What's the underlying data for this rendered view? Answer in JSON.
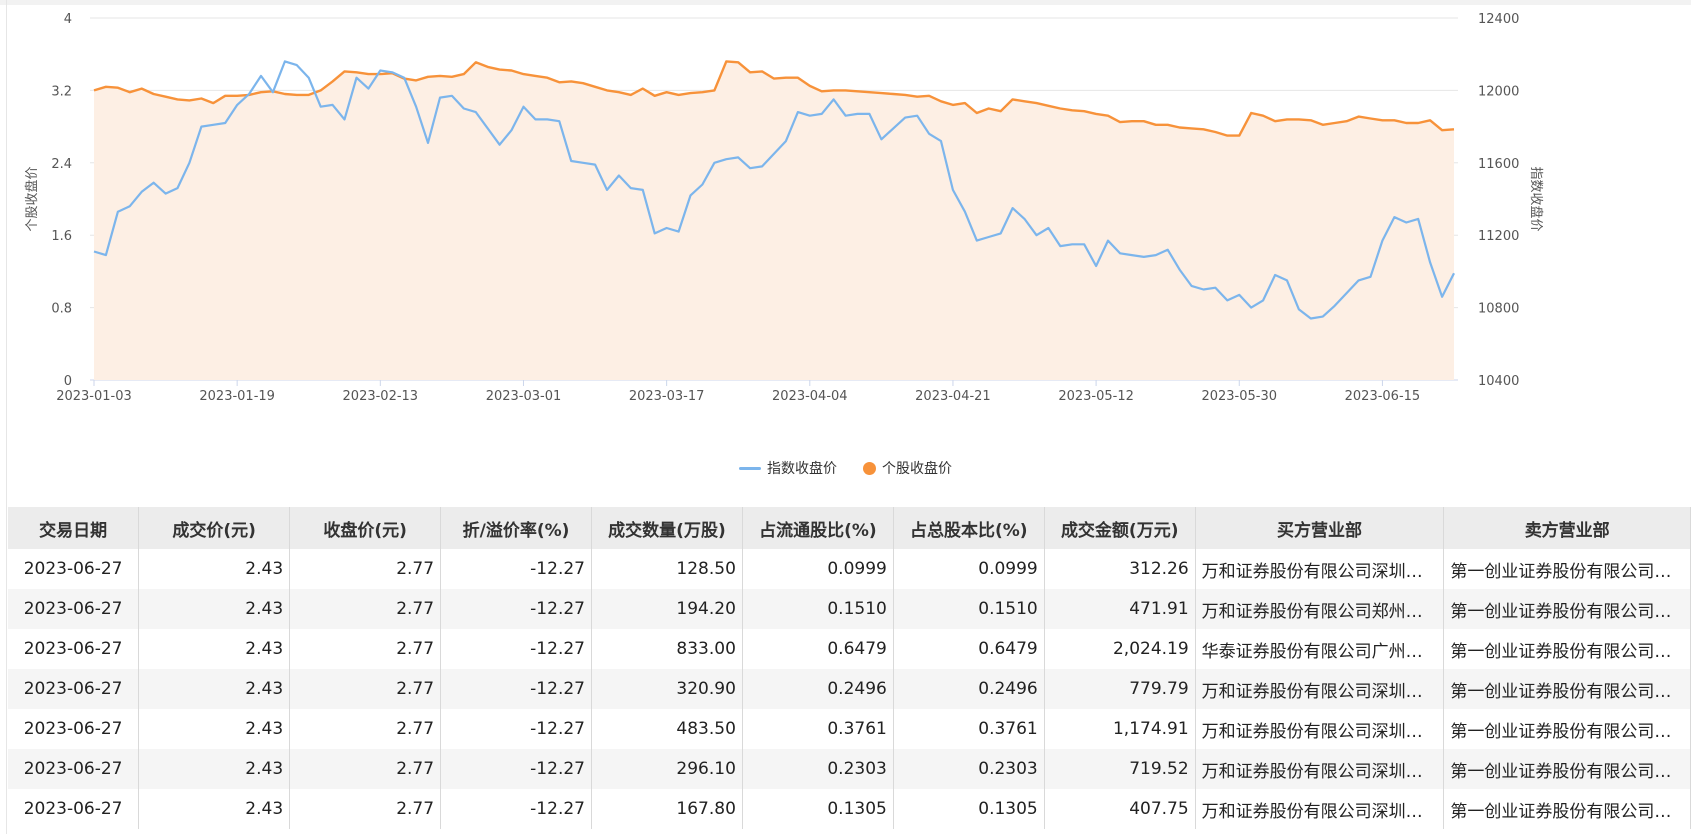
{
  "chart_data": {
    "type": "line",
    "x": [
      "2023-01-03",
      "2023-01-04",
      "2023-01-05",
      "2023-01-06",
      "2023-01-09",
      "2023-01-10",
      "2023-01-11",
      "2023-01-12",
      "2023-01-13",
      "2023-01-16",
      "2023-01-17",
      "2023-01-18",
      "2023-01-19",
      "2023-01-20",
      "2023-01-30",
      "2023-01-31",
      "2023-02-01",
      "2023-02-02",
      "2023-02-03",
      "2023-02-06",
      "2023-02-07",
      "2023-02-08",
      "2023-02-09",
      "2023-02-10",
      "2023-02-13",
      "2023-02-14",
      "2023-02-15",
      "2023-02-16",
      "2023-02-17",
      "2023-02-20",
      "2023-02-21",
      "2023-02-22",
      "2023-02-23",
      "2023-02-24",
      "2023-02-27",
      "2023-02-28",
      "2023-03-01",
      "2023-03-02",
      "2023-03-03",
      "2023-03-06",
      "2023-03-07",
      "2023-03-08",
      "2023-03-09",
      "2023-03-10",
      "2023-03-13",
      "2023-03-14",
      "2023-03-15",
      "2023-03-16",
      "2023-03-17",
      "2023-03-20",
      "2023-03-21",
      "2023-03-22",
      "2023-03-23",
      "2023-03-24",
      "2023-03-27",
      "2023-03-28",
      "2023-03-29",
      "2023-03-30",
      "2023-03-31",
      "2023-04-03",
      "2023-04-04",
      "2023-04-06",
      "2023-04-07",
      "2023-04-10",
      "2023-04-11",
      "2023-04-12",
      "2023-04-13",
      "2023-04-14",
      "2023-04-17",
      "2023-04-18",
      "2023-04-19",
      "2023-04-20",
      "2023-04-21",
      "2023-04-24",
      "2023-04-25",
      "2023-04-26",
      "2023-04-27",
      "2023-04-28",
      "2023-05-04",
      "2023-05-05",
      "2023-05-08",
      "2023-05-09",
      "2023-05-10",
      "2023-05-11",
      "2023-05-12",
      "2023-05-15",
      "2023-05-16",
      "2023-05-17",
      "2023-05-18",
      "2023-05-19",
      "2023-05-22",
      "2023-05-23",
      "2023-05-24",
      "2023-05-25",
      "2023-05-26",
      "2023-05-29",
      "2023-05-30",
      "2023-05-31",
      "2023-06-01",
      "2023-06-02",
      "2023-06-05",
      "2023-06-06",
      "2023-06-07",
      "2023-06-08",
      "2023-06-09",
      "2023-06-12",
      "2023-06-13",
      "2023-06-14",
      "2023-06-15",
      "2023-06-16",
      "2023-06-19",
      "2023-06-20",
      "2023-06-21",
      "2023-06-26",
      "2023-06-27"
    ],
    "x_tick_labels": [
      "2023-01-03",
      "2023-01-19",
      "2023-02-13",
      "2023-03-01",
      "2023-03-17",
      "2023-04-04",
      "2023-04-21",
      "2023-05-12",
      "2023-05-30",
      "2023-06-15"
    ],
    "x_tick_indices": [
      0,
      12,
      24,
      36,
      48,
      60,
      72,
      84,
      96,
      108
    ],
    "y_left": {
      "label": "个股收盘价",
      "min": 0,
      "max": 4,
      "ticks": [
        0,
        0.8,
        1.6,
        2.4,
        3.2,
        4
      ]
    },
    "y_right": {
      "label": "指数收盘价",
      "min": 10400,
      "max": 12400,
      "ticks": [
        10400,
        10800,
        11200,
        11600,
        12000,
        12400
      ]
    },
    "grid": true,
    "legend_position": "bottom-center",
    "series": [
      {
        "name": "指数收盘价",
        "axis": "right",
        "color": "#7cb5ec",
        "values": [
          11110,
          11090,
          11330,
          11360,
          11440,
          11490,
          11430,
          11460,
          11600,
          11800,
          11810,
          11820,
          11920,
          11980,
          12080,
          11990,
          12160,
          12140,
          12070,
          11910,
          11920,
          11840,
          12070,
          12010,
          12110,
          12100,
          12070,
          11910,
          11710,
          11960,
          11970,
          11900,
          11880,
          11790,
          11700,
          11780,
          11910,
          11840,
          11840,
          11830,
          11610,
          11600,
          11590,
          11450,
          11530,
          11460,
          11450,
          11210,
          11240,
          11220,
          11420,
          11480,
          11600,
          11620,
          11630,
          11570,
          11580,
          11650,
          11720,
          11880,
          11860,
          11870,
          11950,
          11860,
          11870,
          11870,
          11730,
          11790,
          11850,
          11860,
          11760,
          11720,
          11450,
          11330,
          11170,
          11190,
          11210,
          11350,
          11290,
          11200,
          11240,
          11140,
          11150,
          11150,
          11030,
          11170,
          11100,
          11090,
          11080,
          11090,
          11120,
          11010,
          10920,
          10900,
          10910,
          10840,
          10870,
          10800,
          10840,
          10980,
          10950,
          10790,
          10740,
          10750,
          10810,
          10880,
          10950,
          10970,
          11170,
          11300,
          11270,
          11290,
          11050,
          10860,
          10990
        ]
      },
      {
        "name": "个股收盘价",
        "axis": "left",
        "color": "#f7923a",
        "values": [
          3.2,
          3.24,
          3.23,
          3.18,
          3.22,
          3.16,
          3.13,
          3.1,
          3.09,
          3.11,
          3.06,
          3.14,
          3.14,
          3.15,
          3.18,
          3.19,
          3.16,
          3.15,
          3.15,
          3.2,
          3.3,
          3.41,
          3.4,
          3.38,
          3.38,
          3.39,
          3.33,
          3.31,
          3.35,
          3.36,
          3.35,
          3.38,
          3.51,
          3.46,
          3.43,
          3.42,
          3.38,
          3.36,
          3.34,
          3.29,
          3.3,
          3.28,
          3.24,
          3.2,
          3.18,
          3.15,
          3.22,
          3.14,
          3.18,
          3.15,
          3.17,
          3.18,
          3.2,
          3.52,
          3.51,
          3.4,
          3.41,
          3.33,
          3.34,
          3.34,
          3.25,
          3.19,
          3.2,
          3.2,
          3.19,
          3.18,
          3.17,
          3.16,
          3.15,
          3.13,
          3.14,
          3.08,
          3.04,
          3.06,
          2.95,
          3.0,
          2.97,
          3.1,
          3.08,
          3.06,
          3.03,
          3.0,
          2.98,
          2.97,
          2.94,
          2.92,
          2.85,
          2.86,
          2.86,
          2.82,
          2.82,
          2.79,
          2.78,
          2.77,
          2.74,
          2.7,
          2.7,
          2.95,
          2.92,
          2.86,
          2.88,
          2.88,
          2.87,
          2.82,
          2.84,
          2.86,
          2.91,
          2.89,
          2.87,
          2.87,
          2.84,
          2.84,
          2.87,
          2.76,
          2.77
        ]
      }
    ]
  },
  "table": {
    "headers": [
      "交易日期",
      "成交价(元)",
      "收盘价(元)",
      "折/溢价率(%)",
      "成交数量(万股)",
      "占流通股比(%)",
      "占总股本比(%)",
      "成交金额(万元)",
      "买方营业部",
      "卖方营业部"
    ],
    "rows": [
      [
        "2023-06-27",
        "2.43",
        "2.77",
        "-12.27",
        "128.50",
        "0.0999",
        "0.0999",
        "312.26",
        "万和证券股份有限公司深圳…",
        "第一创业证券股份有限公司…"
      ],
      [
        "2023-06-27",
        "2.43",
        "2.77",
        "-12.27",
        "194.20",
        "0.1510",
        "0.1510",
        "471.91",
        "万和证券股份有限公司郑州…",
        "第一创业证券股份有限公司…"
      ],
      [
        "2023-06-27",
        "2.43",
        "2.77",
        "-12.27",
        "833.00",
        "0.6479",
        "0.6479",
        "2,024.19",
        "华泰证券股份有限公司广州…",
        "第一创业证券股份有限公司…"
      ],
      [
        "2023-06-27",
        "2.43",
        "2.77",
        "-12.27",
        "320.90",
        "0.2496",
        "0.2496",
        "779.79",
        "万和证券股份有限公司深圳…",
        "第一创业证券股份有限公司…"
      ],
      [
        "2023-06-27",
        "2.43",
        "2.77",
        "-12.27",
        "483.50",
        "0.3761",
        "0.3761",
        "1,174.91",
        "万和证券股份有限公司深圳…",
        "第一创业证券股份有限公司…"
      ],
      [
        "2023-06-27",
        "2.43",
        "2.77",
        "-12.27",
        "296.10",
        "0.2303",
        "0.2303",
        "719.52",
        "万和证券股份有限公司深圳…",
        "第一创业证券股份有限公司…"
      ],
      [
        "2023-06-27",
        "2.43",
        "2.77",
        "-12.27",
        "167.80",
        "0.1305",
        "0.1305",
        "407.75",
        "万和证券股份有限公司深圳…",
        "第一创业证券股份有限公司…"
      ]
    ]
  },
  "colors": {
    "area_fill": "#fdefe4",
    "gridline": "#e6e6e6",
    "header_bg": "#ececec",
    "row_alt_bg": "#f5f5f5"
  }
}
